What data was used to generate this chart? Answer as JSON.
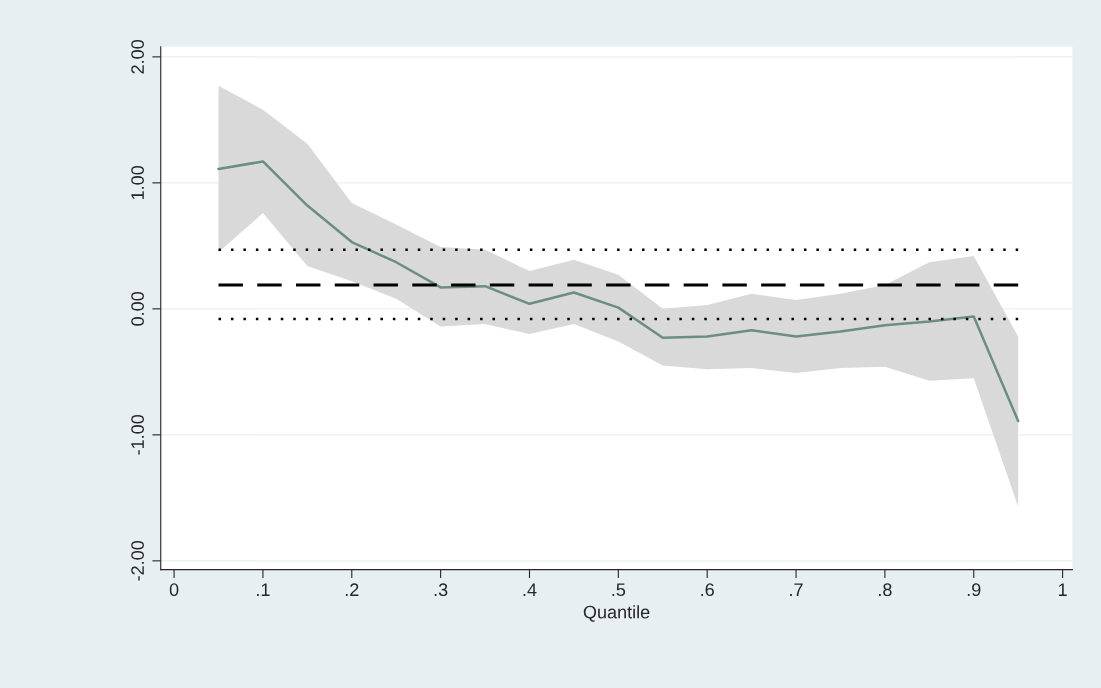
{
  "chart_data": {
    "type": "line",
    "xlabel": "Quantile",
    "x": [
      0.05,
      0.1,
      0.15,
      0.2,
      0.25,
      0.3,
      0.35,
      0.4,
      0.45,
      0.5,
      0.55,
      0.6,
      0.65,
      0.7,
      0.75,
      0.8,
      0.85,
      0.9,
      0.95
    ],
    "series": [
      {
        "color": "#6b8e80",
        "values": [
          1.11,
          1.17,
          0.82,
          0.53,
          0.37,
          0.17,
          0.18,
          0.04,
          0.13,
          0.01,
          -0.23,
          -0.22,
          -0.17,
          -0.22,
          -0.18,
          -0.13,
          -0.1,
          -0.06,
          -0.89
        ],
        "lower": [
          0.45,
          0.76,
          0.34,
          0.22,
          0.08,
          -0.14,
          -0.12,
          -0.2,
          -0.12,
          -0.26,
          -0.45,
          -0.48,
          -0.47,
          -0.51,
          -0.47,
          -0.46,
          -0.57,
          -0.55,
          -1.57
        ],
        "upper": [
          1.77,
          1.58,
          1.31,
          0.84,
          0.67,
          0.49,
          0.47,
          0.3,
          0.39,
          0.27,
          0.0,
          0.03,
          0.12,
          0.07,
          0.12,
          0.19,
          0.37,
          0.42,
          -0.22
        ]
      },
      {
        "type": "line",
        "color": "#000000",
        "line_style": "dashed",
        "values": [
          0.19,
          0.19,
          0.19,
          0.19,
          0.19,
          0.19,
          0.19,
          0.19,
          0.19,
          0.19,
          0.19,
          0.19,
          0.19,
          0.19,
          0.19,
          0.19,
          0.19,
          0.19,
          0.19
        ]
      },
      {
        "type": "line",
        "color": "#000000",
        "line_style": "dotted",
        "values": [
          0.47,
          0.47,
          0.47,
          0.47,
          0.47,
          0.47,
          0.47,
          0.47,
          0.47,
          0.47,
          0.47,
          0.47,
          0.47,
          0.47,
          0.47,
          0.47,
          0.47,
          0.47,
          0.47
        ]
      },
      {
        "type": "line",
        "color": "#000000",
        "line_style": "dotted",
        "values": [
          -0.08,
          -0.08,
          -0.08,
          -0.08,
          -0.08,
          -0.08,
          -0.08,
          -0.08,
          -0.08,
          -0.08,
          -0.08,
          -0.08,
          -0.08,
          -0.08,
          -0.08,
          -0.08,
          -0.08,
          -0.08,
          -0.08
        ]
      }
    ],
    "xlim": [
      -0.015,
      1.011
    ],
    "ylim": [
      -2.07,
      2.08
    ],
    "xticks": [
      0,
      {
        "value": 0.1,
        "label": ".1"
      },
      {
        "value": 0.2,
        "label": ".2"
      },
      {
        "value": 0.3,
        "label": ".3"
      },
      {
        "value": 0.4,
        "label": ".4"
      },
      {
        "value": 0.5,
        "label": ".5"
      },
      {
        "value": 0.6,
        "label": ".6"
      },
      {
        "value": 0.7,
        "label": ".7"
      },
      {
        "value": 0.8,
        "label": ".8"
      },
      {
        "value": 0.9,
        "label": ".9"
      },
      1
    ],
    "yticks": [
      {
        "value": -2,
        "label": "-2.00"
      },
      {
        "value": -1,
        "label": "-1.00"
      },
      {
        "value": 0,
        "label": "0.00"
      },
      {
        "value": 1,
        "label": "1.00"
      },
      {
        "value": 2,
        "label": "2.00"
      }
    ],
    "grid": "y",
    "legend": false
  }
}
